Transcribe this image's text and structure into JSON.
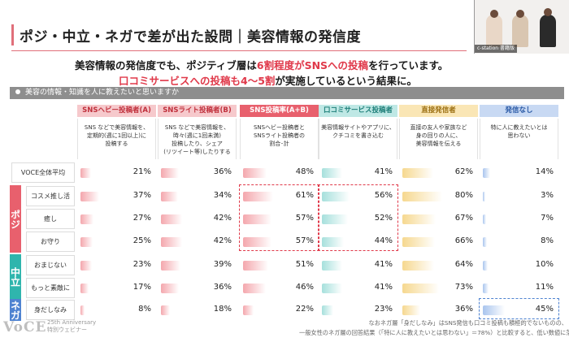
{
  "slide": {
    "title": "ポジ・中立・ネガで差が出た設問｜美容情報の発信度",
    "subtitle_line1_pre": "美容情報の発信度でも、ポジティブ層は",
    "subtitle_line1_hl": "6割程度がSNSへの投稿",
    "subtitle_line1_post": "を行っています。",
    "subtitle_line2_hl": "口コミサービスへの投稿も4～5割",
    "subtitle_line2_post": "が実施しているという結果に。",
    "question": "美容の情報・知識を人に教えたいと思いますか"
  },
  "columns": [
    {
      "label": "SNSヘビー投稿者(A)",
      "desc_lines": [
        "SNS などで美容情報を、",
        "定期的(週に1回以上)に",
        "投稿する"
      ],
      "bar_color": "#f4a7ad",
      "head_bg": "#f6c9cc",
      "head_color": "#c0303c"
    },
    {
      "label": "SNSライト投稿者(B)",
      "desc_lines": [
        "SNS などで美容情報を、",
        "時々(週に1回未満)",
        "投稿したり、シェア",
        "(リツイート等)したりする"
      ],
      "bar_color": "#f4a7ad",
      "head_bg": "#f6c9cc",
      "head_color": "#c0303c"
    },
    {
      "label": "SNS投稿率(A+B)",
      "desc_lines": [
        "SNSヘビー投稿者と",
        "SNSライト投稿者の",
        "割合･計"
      ],
      "bar_color": "#f4a7ad",
      "head_bg": "#e8606d",
      "head_color": "#ffffff"
    },
    {
      "label": "口コミサービス投稿者",
      "desc_lines": [
        "美容情報サイトやアプリに、",
        "クチコミを書き込む"
      ],
      "bar_color": "#a6e0dc",
      "head_bg": "#bfe8e5",
      "head_color": "#1f7f79"
    },
    {
      "label": "直接発信者",
      "desc_lines": [
        "直接の友人や家族など",
        "身の回りの人に、",
        "美容情報を伝える"
      ],
      "bar_color": "#f6d88f",
      "head_bg": "#fae6b5",
      "head_color": "#9b6f12"
    },
    {
      "label": "発信なし",
      "desc_lines": [
        "特に人に教えたいとは",
        "思わない"
      ],
      "bar_color": "#a9c5ee",
      "head_bg": "#c8d9f3",
      "head_color": "#2a5aa6"
    }
  ],
  "groups": [
    {
      "label": "ポジ",
      "color": "#e8606d"
    },
    {
      "label": "中立",
      "color": "#2fb5ad"
    },
    {
      "label": "ネガ",
      "color": "#4f83d1"
    }
  ],
  "rows": [
    {
      "label": "VOCE全体平均",
      "values": [
        21,
        36,
        48,
        41,
        62,
        14
      ]
    },
    {
      "label": "コスメ推し活",
      "values": [
        37,
        34,
        61,
        56,
        80,
        3
      ]
    },
    {
      "label": "癒し",
      "values": [
        27,
        42,
        57,
        52,
        67,
        7
      ]
    },
    {
      "label": "お守り",
      "values": [
        25,
        42,
        57,
        44,
        66,
        8
      ]
    },
    {
      "label": "おまじない",
      "values": [
        23,
        39,
        51,
        41,
        64,
        10
      ]
    },
    {
      "label": "もっと素敵に",
      "values": [
        17,
        36,
        46,
        41,
        73,
        11
      ]
    },
    {
      "label": "身だしなみ",
      "values": [
        8,
        18,
        22,
        23,
        36,
        45
      ]
    }
  ],
  "footnote": {
    "line1": "なおネガ層「身だしなみ」はSNS発信も口コミ投稿も積極的でないものの、",
    "line2": "一般女性のネガ層の回答結果（「特に人に教えたいとは思わない」＝78%）と比較すると、低い数値に落ち着いています。"
  },
  "branding": {
    "logo": "VoCE",
    "anniversary_line1": "25th Anniversary",
    "anniversary_line2": "特別ウェビナー"
  },
  "webinar": {
    "caption": "c-station 書籍版"
  }
}
